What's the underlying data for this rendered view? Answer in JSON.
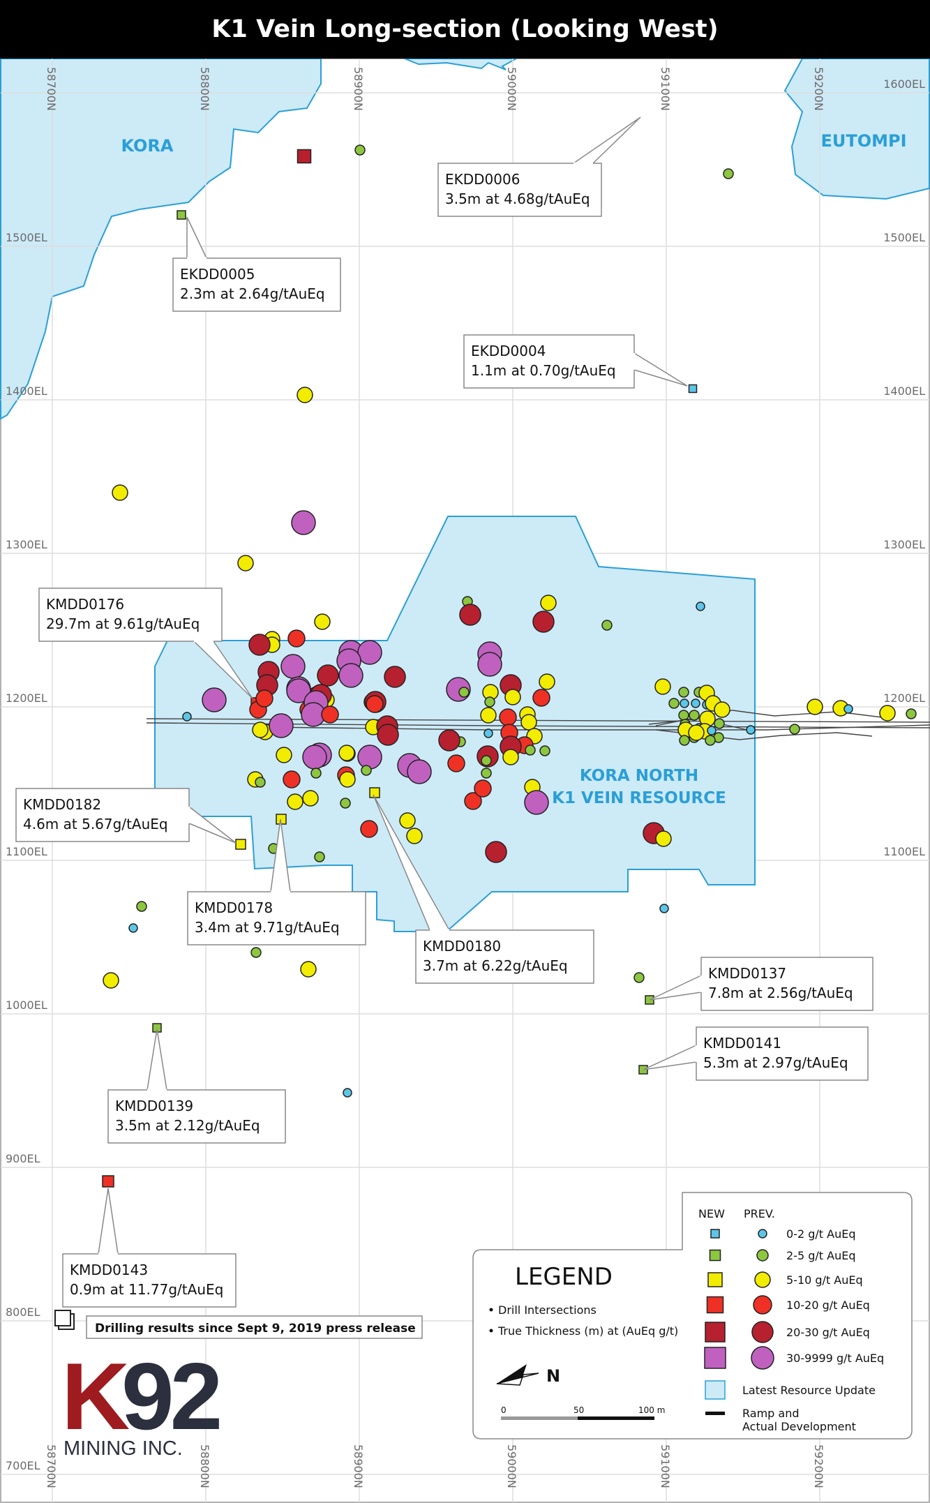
{
  "title": "K1 Vein Long-section (Looking West)",
  "colors": {
    "water_fill": "#cdeaf7",
    "water_stroke": "#2a9fd6",
    "resource_fill": "#cdeaf7",
    "resource_stroke": "#2a9fd6",
    "label_blue": "#2a9fd6",
    "grade_0_2": "#5bc6e8",
    "grade_2_5": "#8dc63f",
    "grade_5_10": "#f2ec00",
    "grade_10_20": "#ee3124",
    "grade_20_30": "#b7202e",
    "grade_30_plus": "#c061c0",
    "logo_red": "#9e1b20",
    "logo_dark": "#2b2f3e"
  },
  "grid": {
    "northings": [
      "58700N",
      "58800N",
      "58900N",
      "59000N",
      "59100N",
      "59200N"
    ],
    "elevations": [
      "1600EL",
      "1500EL",
      "1400EL",
      "1300EL",
      "1200EL",
      "1100EL",
      "1000EL",
      "900EL",
      "800EL",
      "700EL"
    ]
  },
  "areas": {
    "kora": "KORA",
    "eutompi": "EUTOMPI",
    "kora_north_1": "KORA NORTH",
    "kora_north_2": "K1 VEIN RESOURCE"
  },
  "callouts": [
    {
      "hole": "EKDD0006",
      "result": "3.5m at 4.68g/tAuEq"
    },
    {
      "hole": "EKDD0005",
      "result": "2.3m at 2.64g/tAuEq"
    },
    {
      "hole": "EKDD0004",
      "result": "1.1m at 0.70g/tAuEq"
    },
    {
      "hole": "KMDD0176",
      "result": "29.7m at 9.61g/tAuEq"
    },
    {
      "hole": "KMDD0182",
      "result": "4.6m at 5.67g/tAuEq"
    },
    {
      "hole": "KMDD0178",
      "result": "3.4m at 9.71g/tAuEq"
    },
    {
      "hole": "KMDD0180",
      "result": "3.7m at 6.22g/tAuEq"
    },
    {
      "hole": "KMDD0137",
      "result": "7.8m at 2.56g/tAuEq"
    },
    {
      "hole": "KMDD0141",
      "result": "5.3m at 2.97g/tAuEq"
    },
    {
      "hole": "KMDD0139",
      "result": "3.5m at 2.12g/tAuEq"
    },
    {
      "hole": "KMDD0143",
      "result": "0.9m at 11.77g/tAuEq"
    }
  ],
  "drilling_note": "Drilling results since Sept 9, 2019 press release",
  "legend": {
    "title": "LEGEND",
    "bullets": [
      "Drill Intersections",
      "True Thickness (m) at (AuEq g/t)"
    ],
    "north": "N",
    "scale": [
      "0",
      "50",
      "100 m"
    ],
    "col_new": "NEW",
    "col_prev": "PREV.",
    "grades": [
      "0-2 g/t AuEq",
      "2-5 g/t AuEq",
      "5-10 g/t AuEq",
      "10-20 g/t AuEq",
      "20-30 g/t AuEq",
      "30-9999 g/t AuEq"
    ],
    "resource": "Latest Resource Update",
    "ramp": "Ramp and\nActual Development"
  },
  "logo": {
    "mark": "K92",
    "sub": "MINING INC."
  }
}
